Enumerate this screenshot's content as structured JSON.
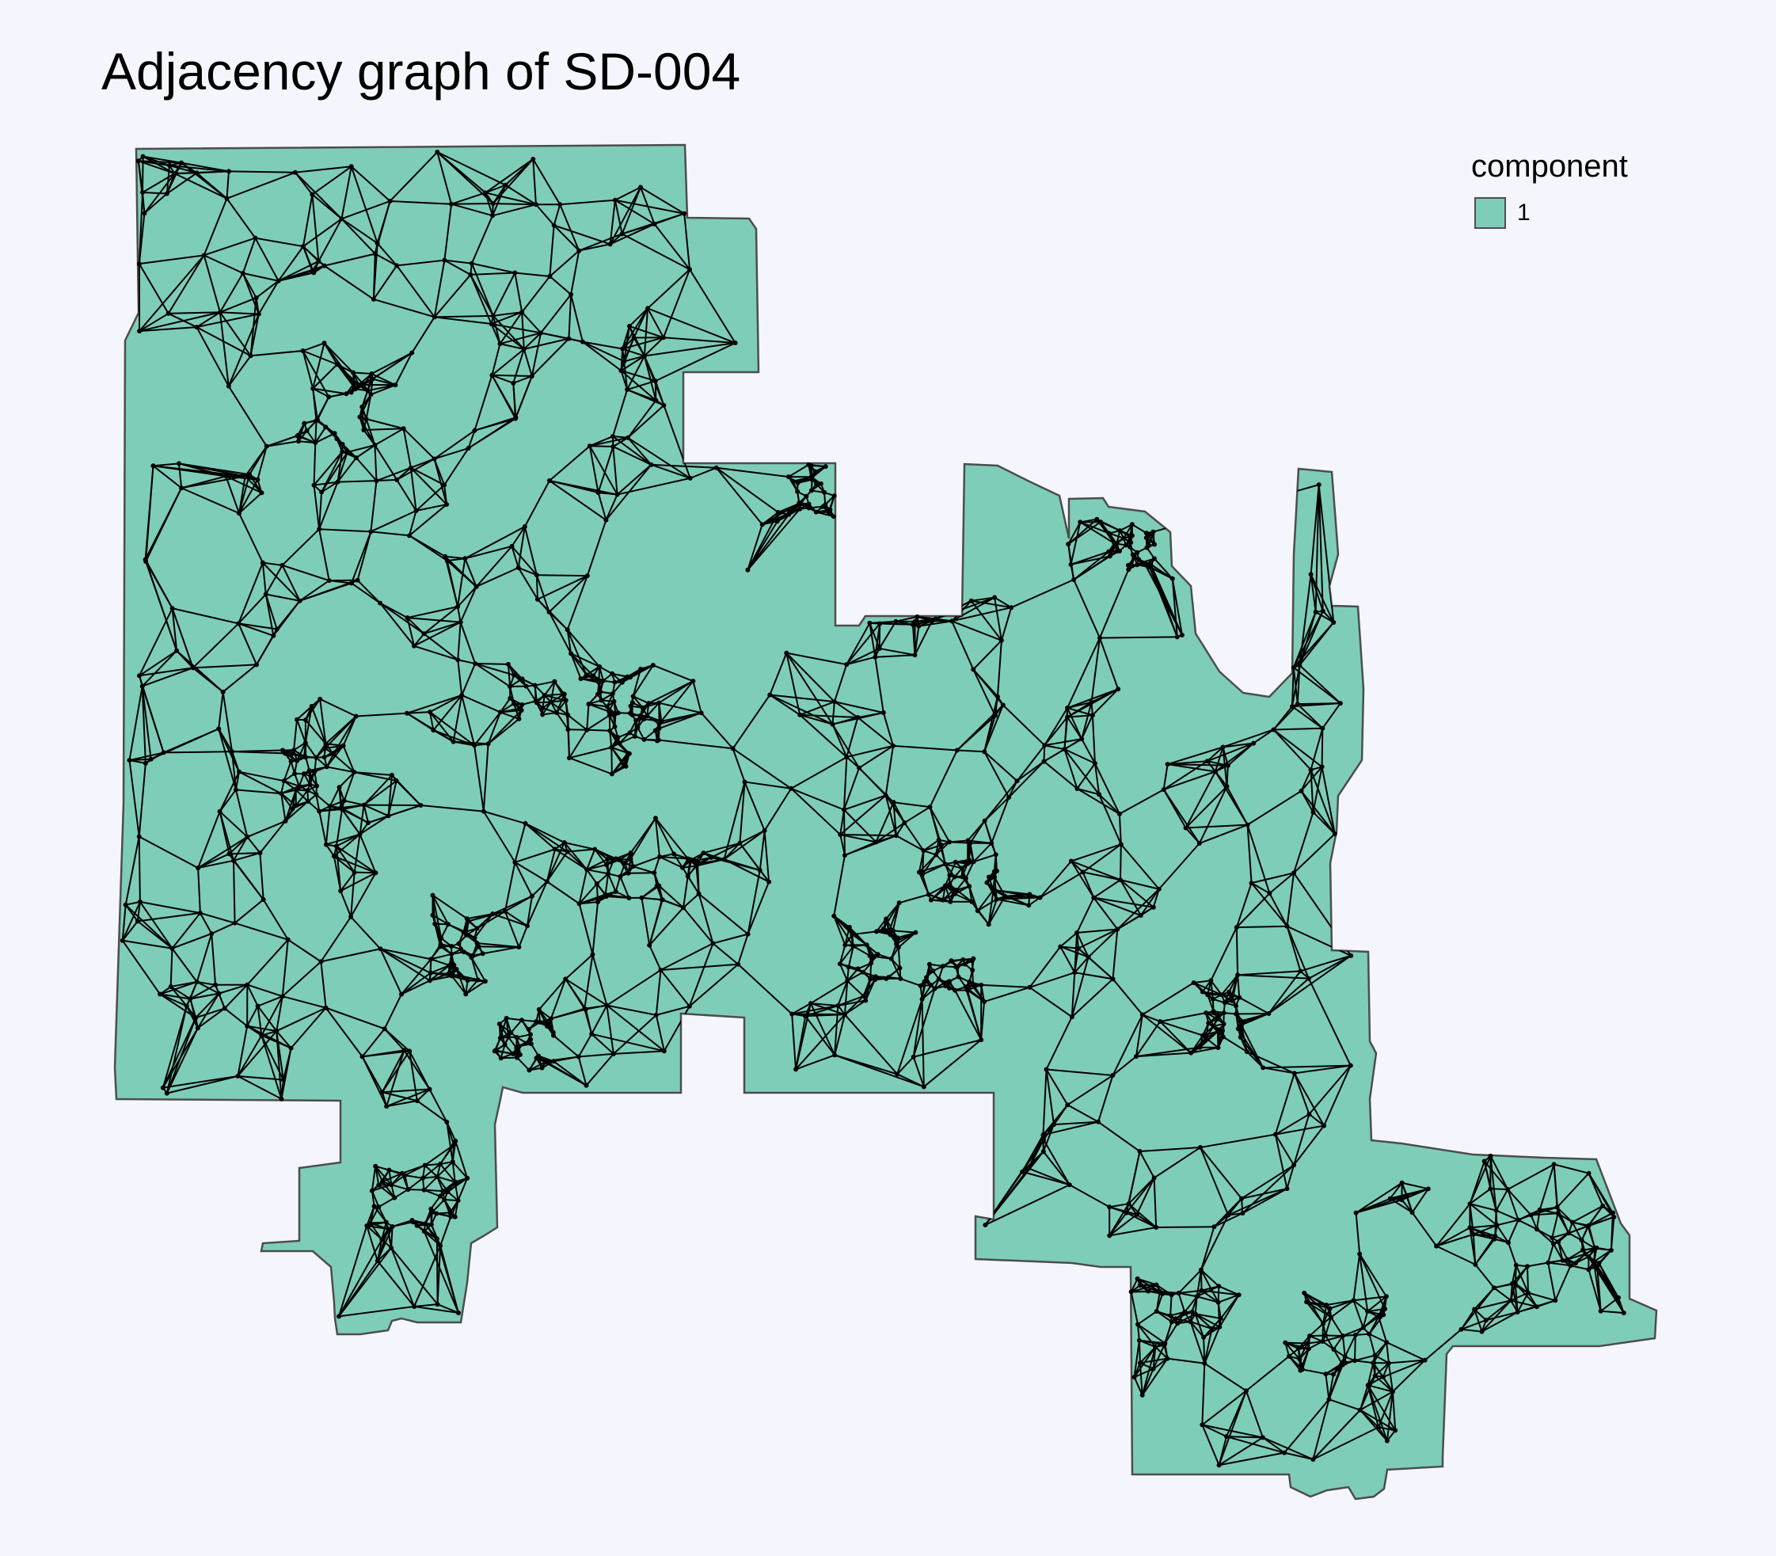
{
  "title": "Adjacency graph of SD-004",
  "legend": {
    "title": "component",
    "items": [
      {
        "label": "1",
        "color": "#7ECDB9"
      }
    ]
  },
  "colors": {
    "background": "#F5F6FD",
    "fill": "#7ECDB9",
    "boundary": "#4d4d4d",
    "edges": "#000000"
  }
}
